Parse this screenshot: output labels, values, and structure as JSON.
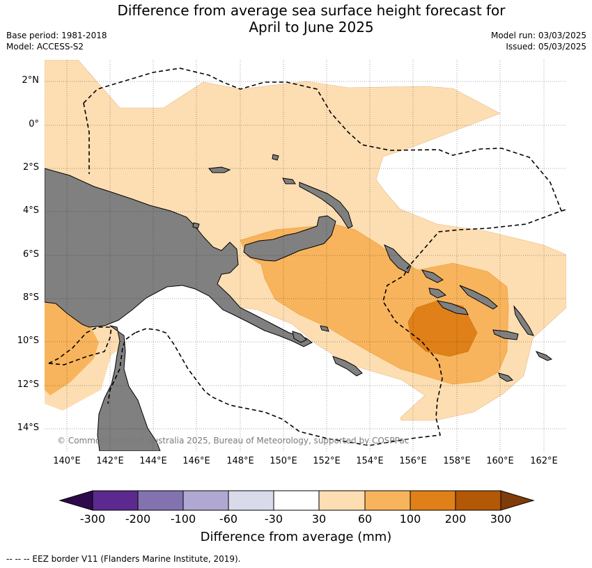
{
  "header": {
    "title_line1": "Difference from average sea surface height forecast for",
    "title_line2": "April to June 2025",
    "base_period": "Base period: 1981-2018",
    "model": "Model: ACCESS-S2",
    "model_run": "Model run: 03/03/2025",
    "issued": "Issued: 05/03/2025"
  },
  "map": {
    "lat_labels": [
      "2°N",
      "0°",
      "2°S",
      "4°S",
      "6°S",
      "8°S",
      "10°S",
      "12°S",
      "14°S"
    ],
    "lon_labels": [
      "140°E",
      "142°E",
      "144°E",
      "146°E",
      "148°E",
      "150°E",
      "152°E",
      "154°E",
      "156°E",
      "158°E",
      "160°E",
      "162°E"
    ],
    "copyright": "© Commonwealth of Australia 2025, Bureau of Meteorology, supported by COSPPac",
    "colors": {
      "land": "#808080",
      "band_30_60": "#fddeb2",
      "band_60_100": "#f8b45c",
      "band_100_200": "#df8018",
      "eez_line": "#000000"
    }
  },
  "colorbar": {
    "labels": [
      "-300",
      "-200",
      "-100",
      "-60",
      "-30",
      "30",
      "60",
      "100",
      "200",
      "300"
    ],
    "colors": [
      "#2d0a4b",
      "#5c2a8e",
      "#8273b0",
      "#b0a8d2",
      "#d9dbeb",
      "#ffffff",
      "#fddeb2",
      "#f8b45c",
      "#df8018",
      "#b35806",
      "#7f3b08"
    ],
    "title": "Difference from average (mm)"
  },
  "legend": {
    "eez_note": "--  --  -- EEZ border V11 (Flanders Marine Institute, 2019)."
  }
}
